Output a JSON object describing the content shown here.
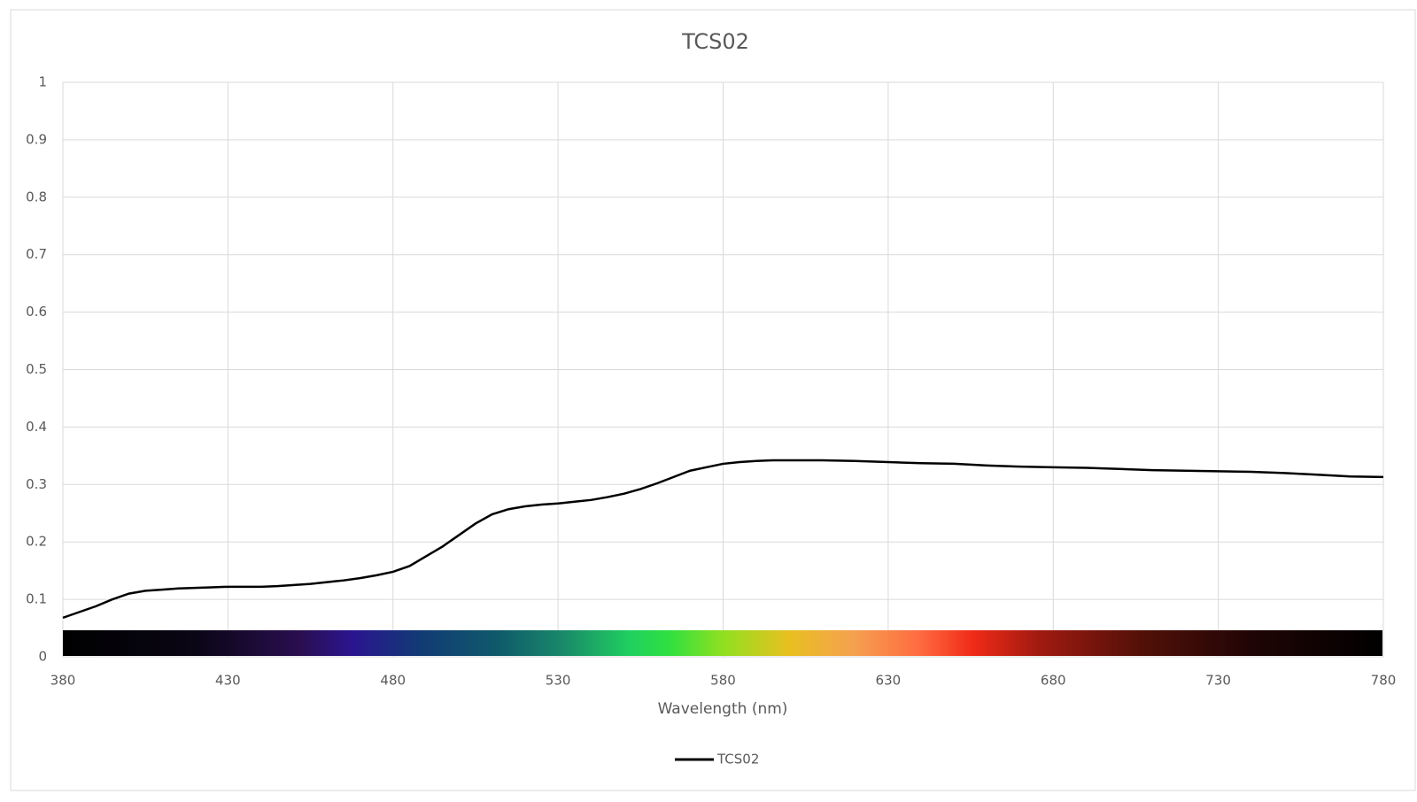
{
  "chart_data": {
    "type": "line",
    "title": "TCS02",
    "x_label": "Wavelength (nm)",
    "x": [
      380,
      385,
      390,
      395,
      400,
      405,
      410,
      415,
      420,
      425,
      430,
      435,
      440,
      445,
      450,
      455,
      460,
      465,
      470,
      475,
      480,
      485,
      490,
      495,
      500,
      505,
      510,
      515,
      520,
      525,
      530,
      535,
      540,
      545,
      550,
      555,
      560,
      565,
      570,
      575,
      580,
      585,
      590,
      595,
      600,
      610,
      620,
      630,
      640,
      650,
      660,
      670,
      680,
      690,
      700,
      710,
      720,
      730,
      740,
      750,
      760,
      770,
      780
    ],
    "series": [
      {
        "name": "TCS02",
        "color": "#000000",
        "values": [
          0.068,
          0.078,
          0.088,
          0.1,
          0.11,
          0.115,
          0.117,
          0.119,
          0.12,
          0.121,
          0.122,
          0.122,
          0.122,
          0.123,
          0.125,
          0.127,
          0.13,
          0.133,
          0.137,
          0.142,
          0.148,
          0.158,
          0.175,
          0.192,
          0.212,
          0.232,
          0.248,
          0.257,
          0.262,
          0.265,
          0.267,
          0.27,
          0.273,
          0.278,
          0.284,
          0.292,
          0.302,
          0.313,
          0.324,
          0.33,
          0.336,
          0.339,
          0.341,
          0.342,
          0.342,
          0.342,
          0.341,
          0.339,
          0.337,
          0.336,
          0.333,
          0.331,
          0.33,
          0.329,
          0.327,
          0.325,
          0.324,
          0.323,
          0.322,
          0.32,
          0.317,
          0.314,
          0.313
        ]
      }
    ],
    "xlim": [
      380,
      780
    ],
    "xticks": [
      380,
      430,
      480,
      530,
      580,
      630,
      680,
      730,
      780
    ],
    "ylim": [
      0,
      1
    ],
    "yticks": [
      0,
      0.1,
      0.2,
      0.3,
      0.4,
      0.5,
      0.6,
      0.7,
      0.8,
      0.9,
      1
    ],
    "grid": true,
    "legend": "bottom"
  }
}
